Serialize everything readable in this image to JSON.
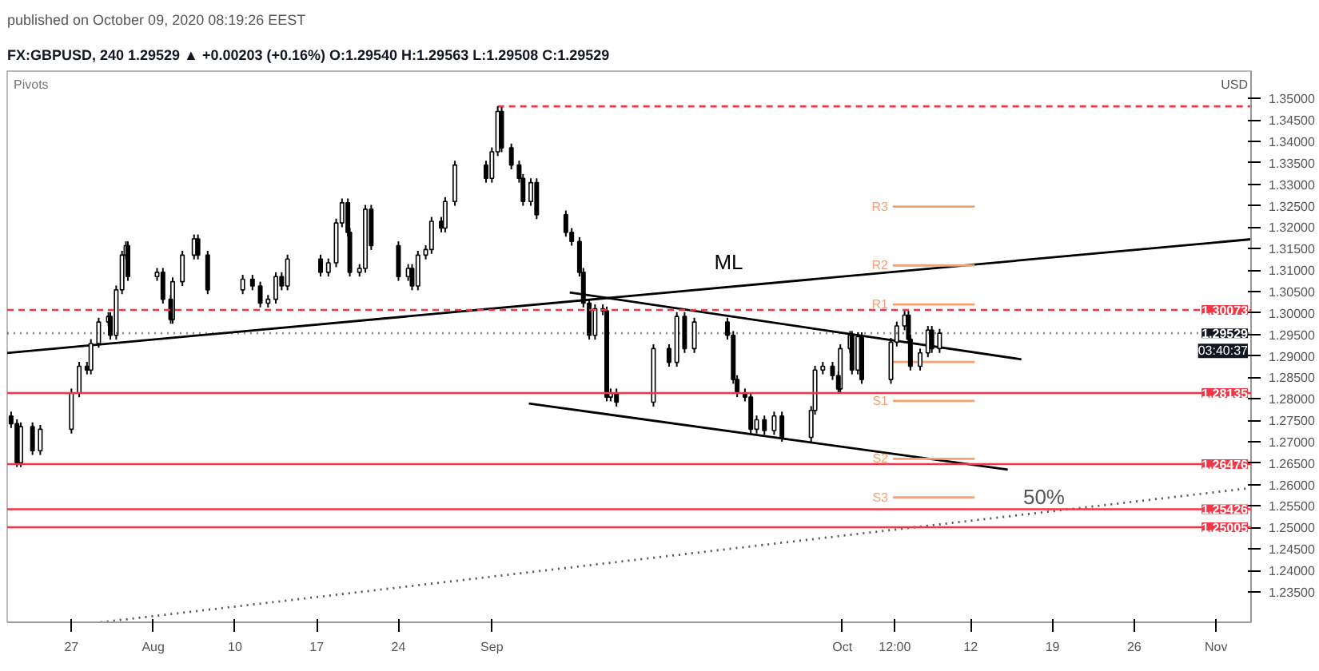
{
  "chart_data": {
    "type": "candlestick",
    "title": "FX:GBPUSD, 240 1.29529 ▲ +0.00203 (+0.16%) O:1.29540 H:1.29563 L:1.29508 C:1.29529",
    "subtitle": "published on October 09, 2020 08:19:26 EEST",
    "annotations": [
      "Pivots",
      "03:40:37",
      "USD"
    ],
    "x": [
      "2020-07-21T20:00",
      "2020-07-22T08:00",
      "2020-07-22T16:00",
      "2020-07-23T16:00",
      "2020-07-24T08:00",
      "2020-07-27T00:00",
      "2020-07-27T16:00",
      "2020-07-28T08:00",
      "2020-07-28T16:00",
      "2020-07-29T08:00",
      "2020-07-30T04:00",
      "2020-07-30T08:00",
      "2020-07-30T20:00",
      "2020-07-31T08:00",
      "2020-07-31T16:00",
      "2020-07-31T20:00",
      "2020-08-03T08:00",
      "2020-08-03T20:00",
      "2020-08-04T12:00",
      "2020-08-04T16:00",
      "2020-08-05T12:00",
      "2020-08-06T12:00",
      "2020-08-06T20:00",
      "2020-08-07T16:00",
      "2020-08-10T16:00",
      "2020-08-11T12:00",
      "2020-08-12T04:00",
      "2020-08-12T20:00",
      "2020-08-13T12:00",
      "2020-08-14T00:00",
      "2020-08-14T12:00",
      "2020-08-17T08:00",
      "2020-08-18T00:00",
      "2020-08-18T16:00",
      "2020-08-19T04:00",
      "2020-08-19T16:00",
      "2020-08-19T20:00",
      "2020-08-20T16:00",
      "2020-08-21T04:00",
      "2020-08-21T16:00",
      "2020-08-24T00:00",
      "2020-08-24T20:00",
      "2020-08-25T04:00",
      "2020-08-25T16:00",
      "2020-08-26T08:00",
      "2020-08-26T20:00",
      "2020-08-27T16:00",
      "2020-08-28T00:00",
      "2020-08-28T20:00",
      "2020-08-31T12:00",
      "2020-09-01T00:00",
      "2020-09-01T12:00",
      "2020-09-01T20:00",
      "2020-09-02T16:00",
      "2020-09-03T08:00",
      "2020-09-03T16:00",
      "2020-09-04T08:00",
      "2020-09-04T20:00",
      "2020-09-07T08:00",
      "2020-09-07T20:00",
      "2020-09-08T12:00",
      "2020-09-08T20:00",
      "2020-09-09T08:00",
      "2020-09-09T20:00",
      "2020-09-10T12:00",
      "2020-09-10T20:00",
      "2020-09-11T04:00",
      "2020-09-11T16:00",
      "2020-09-14T20:00",
      "2020-09-16T04:00",
      "2020-09-16T20:00",
      "2020-09-17T12:00",
      "2020-09-18T08:00",
      "2020-09-21T04:00",
      "2020-09-21T16:00",
      "2020-09-22T00:00",
      "2020-09-22T16:00",
      "2020-09-23T04:00",
      "2020-09-23T16:00",
      "2020-09-24T08:00",
      "2020-09-25T04:00",
      "2020-09-25T20:00",
      "2020-09-28T08:00",
      "2020-09-28T16:00",
      "2020-09-29T08:00",
      "2020-09-30T04:00",
      "2020-09-30T16:00",
      "2020-09-30T20:00",
      "2020-10-01T16:00",
      "2020-10-01T20:00",
      "2020-10-02T08:00",
      "2020-10-02T16:00",
      "2020-10-05T04:00",
      "2020-10-05T16:00",
      "2020-10-06T08:00",
      "2020-10-06T16:00",
      "2020-10-06T20:00",
      "2020-10-07T16:00",
      "2020-10-08T08:00",
      "2020-10-08T16:00",
      "2020-10-09T08:00"
    ],
    "ohlc": [
      [
        1.276,
        1.277,
        1.2732,
        1.2742
      ],
      [
        1.2742,
        1.2752,
        1.2641,
        1.2651
      ],
      [
        1.2651,
        1.2745,
        1.2641,
        1.2735
      ],
      [
        1.2735,
        1.2745,
        1.2669,
        1.2679
      ],
      [
        1.2679,
        1.2739,
        1.2669,
        1.2729
      ],
      [
        1.2729,
        1.2824,
        1.2719,
        1.2814
      ],
      [
        1.2814,
        1.2886,
        1.2804,
        1.2876
      ],
      [
        1.2876,
        1.2886,
        1.2857,
        1.2867
      ],
      [
        1.2867,
        1.2939,
        1.2857,
        1.2929
      ],
      [
        1.2929,
        1.2989,
        1.2919,
        1.2979
      ],
      [
        1.2979,
        1.3002,
        1.2969,
        1.2992
      ],
      [
        1.2992,
        1.3002,
        1.2938,
        1.2948
      ],
      [
        1.2948,
        1.3064,
        1.2938,
        1.3054
      ],
      [
        1.3054,
        1.3145,
        1.3044,
        1.3135
      ],
      [
        1.3135,
        1.3167,
        1.3125,
        1.3157
      ],
      [
        1.3157,
        1.3167,
        1.3075,
        1.3085
      ],
      [
        1.3085,
        1.3105,
        1.3075,
        1.3095
      ],
      [
        1.3095,
        1.3105,
        1.3022,
        1.3032
      ],
      [
        1.3032,
        1.3042,
        1.2975,
        1.2985
      ],
      [
        1.2985,
        1.3083,
        1.2975,
        1.3073
      ],
      [
        1.3073,
        1.3145,
        1.3063,
        1.3135
      ],
      [
        1.3135,
        1.3183,
        1.3125,
        1.3173
      ],
      [
        1.3173,
        1.3183,
        1.3125,
        1.3135
      ],
      [
        1.3135,
        1.3145,
        1.3044,
        1.3054
      ],
      [
        1.3054,
        1.3089,
        1.3044,
        1.3079
      ],
      [
        1.3079,
        1.3089,
        1.3053,
        1.3063
      ],
      [
        1.3063,
        1.3073,
        1.3013,
        1.3023
      ],
      [
        1.3023,
        1.3042,
        1.3013,
        1.3032
      ],
      [
        1.3032,
        1.3095,
        1.3022,
        1.3085
      ],
      [
        1.3085,
        1.3095,
        1.3053,
        1.3063
      ],
      [
        1.3063,
        1.3136,
        1.3053,
        1.3126
      ],
      [
        1.3126,
        1.3136,
        1.3085,
        1.3095
      ],
      [
        1.3095,
        1.3127,
        1.3085,
        1.3117
      ],
      [
        1.3117,
        1.322,
        1.3107,
        1.321
      ],
      [
        1.321,
        1.3267,
        1.32,
        1.3257
      ],
      [
        1.3257,
        1.3267,
        1.3178,
        1.3188
      ],
      [
        1.3188,
        1.3198,
        1.3085,
        1.3095
      ],
      [
        1.3095,
        1.3114,
        1.3085,
        1.3104
      ],
      [
        1.3104,
        1.3252,
        1.3094,
        1.3242
      ],
      [
        1.3242,
        1.3252,
        1.3147,
        1.3157
      ],
      [
        1.3157,
        1.3167,
        1.3075,
        1.3085
      ],
      [
        1.3085,
        1.3114,
        1.3075,
        1.3104
      ],
      [
        1.3104,
        1.3114,
        1.3053,
        1.3063
      ],
      [
        1.3063,
        1.3145,
        1.3053,
        1.3135
      ],
      [
        1.3135,
        1.3158,
        1.3125,
        1.3148
      ],
      [
        1.3148,
        1.3224,
        1.3138,
        1.3214
      ],
      [
        1.3214,
        1.3224,
        1.3188,
        1.3198
      ],
      [
        1.3198,
        1.327,
        1.3188,
        1.326
      ],
      [
        1.326,
        1.3355,
        1.325,
        1.3345
      ],
      [
        1.3345,
        1.3355,
        1.3304,
        1.3314
      ],
      [
        1.3314,
        1.3386,
        1.3304,
        1.3376
      ],
      [
        1.3376,
        1.3482,
        1.3366,
        1.347
      ],
      [
        1.347,
        1.348,
        1.3375,
        1.3385
      ],
      [
        1.3385,
        1.3395,
        1.3335,
        1.3345
      ],
      [
        1.3345,
        1.3355,
        1.3304,
        1.3314
      ],
      [
        1.3314,
        1.3324,
        1.325,
        1.326
      ],
      [
        1.326,
        1.3314,
        1.325,
        1.3304
      ],
      [
        1.3304,
        1.3314,
        1.3219,
        1.3229
      ],
      [
        1.3229,
        1.3239,
        1.3178,
        1.3188
      ],
      [
        1.3188,
        1.3198,
        1.3157,
        1.3167
      ],
      [
        1.3167,
        1.3177,
        1.3085,
        1.3095
      ],
      [
        1.3095,
        1.3105,
        1.3013,
        1.3023
      ],
      [
        1.3023,
        1.3033,
        1.2938,
        1.2948
      ],
      [
        1.2948,
        1.302,
        1.2938,
        1.301
      ],
      [
        1.301,
        1.302,
        1.2995,
        1.3005
      ],
      [
        1.3005,
        1.3015,
        1.2794,
        1.2804
      ],
      [
        1.2804,
        1.2824,
        1.2794,
        1.2814
      ],
      [
        1.2814,
        1.2824,
        1.2782,
        1.2792
      ],
      [
        1.2792,
        1.2927,
        1.2782,
        1.2917
      ],
      [
        1.2917,
        1.2927,
        1.2875,
        1.2885
      ],
      [
        1.2885,
        1.3002,
        1.2875,
        1.2992
      ],
      [
        1.2992,
        1.3002,
        1.2907,
        1.2917
      ],
      [
        1.2917,
        1.2989,
        1.2907,
        1.2979
      ],
      [
        1.2979,
        1.2989,
        1.2938,
        1.2948
      ],
      [
        1.2948,
        1.2958,
        1.2835,
        1.2845
      ],
      [
        1.2845,
        1.2855,
        1.2804,
        1.2814
      ],
      [
        1.2814,
        1.2824,
        1.2794,
        1.2804
      ],
      [
        1.2804,
        1.2814,
        1.2719,
        1.2729
      ],
      [
        1.2729,
        1.2761,
        1.2719,
        1.2751
      ],
      [
        1.2751,
        1.2761,
        1.2716,
        1.2726
      ],
      [
        1.2726,
        1.277,
        1.2716,
        1.276
      ],
      [
        1.276,
        1.277,
        1.27,
        1.271
      ],
      [
        1.271,
        1.2783,
        1.27,
        1.2773
      ],
      [
        1.2773,
        1.2877,
        1.2763,
        1.2867
      ],
      [
        1.2867,
        1.2886,
        1.2857,
        1.2876
      ],
      [
        1.2876,
        1.2886,
        1.2844,
        1.2854
      ],
      [
        1.2854,
        1.2864,
        1.2813,
        1.2823
      ],
      [
        1.2823,
        1.2927,
        1.2813,
        1.2917
      ],
      [
        1.2917,
        1.2958,
        1.2907,
        1.2948
      ],
      [
        1.2948,
        1.2958,
        1.2857,
        1.2867
      ],
      [
        1.2867,
        1.2955,
        1.2857,
        1.2945
      ],
      [
        1.2945,
        1.2955,
        1.2835,
        1.2845
      ],
      [
        1.2845,
        1.2942,
        1.2835,
        1.2932
      ],
      [
        1.2932,
        1.298,
        1.2922,
        1.297
      ],
      [
        1.297,
        1.3005,
        1.296,
        1.2995
      ],
      [
        1.2995,
        1.3005,
        1.2929,
        1.2939
      ],
      [
        1.2939,
        1.2949,
        1.2866,
        1.2876
      ],
      [
        1.2876,
        1.2917,
        1.2866,
        1.2907
      ],
      [
        1.2907,
        1.297,
        1.2897,
        1.296
      ],
      [
        1.296,
        1.297,
        1.2907,
        1.2917
      ],
      [
        1.2917,
        1.2963,
        1.2907,
        1.2953
      ]
    ],
    "series": [
      {
        "type": "line",
        "name": "ML",
        "color": "#000000",
        "x": [
          "2020-07-21T12:00",
          "2020-11-05T00:00"
        ],
        "values": [
          1.2907,
          1.3172
        ]
      },
      {
        "type": "line",
        "color": "#000000",
        "x": [
          "2020-09-07T16:00",
          "2020-10-16T08:00"
        ],
        "values": [
          1.3048,
          1.2892
        ]
      },
      {
        "type": "line",
        "color": "#000000",
        "x": [
          "2020-09-04T04:00",
          "2020-10-15T04:00"
        ],
        "values": [
          1.2789,
          1.2635
        ]
      },
      {
        "type": "line",
        "name": "50%",
        "color": "#555555",
        "line_style": "dotted",
        "x": [
          "2020-07-29T12:00",
          "2020-11-05T00:00"
        ],
        "values": [
          1.2279,
          1.2592
        ]
      },
      {
        "type": "line",
        "color": "#f23645",
        "line_style": "dashed",
        "x": [
          "2020-09-01T12:00",
          "2020-11-05T00:00"
        ],
        "values": [
          1.3482,
          1.3482
        ]
      },
      {
        "type": "line",
        "name": "R3",
        "color": "#f7a072",
        "x": [
          "2020-10-05T08:00",
          "2020-10-12T08:00"
        ],
        "values": [
          1.3248,
          1.3248
        ]
      },
      {
        "type": "line",
        "name": "R2",
        "color": "#f7a072",
        "x": [
          "2020-10-05T08:00",
          "2020-10-12T08:00"
        ],
        "values": [
          1.3111,
          1.3111
        ]
      },
      {
        "type": "line",
        "name": "R1",
        "color": "#f7a072",
        "x": [
          "2020-10-05T08:00",
          "2020-10-12T08:00"
        ],
        "values": [
          1.302,
          1.302
        ]
      },
      {
        "type": "line",
        "color": "#f7a072",
        "x": [
          "2020-10-05T08:00",
          "2020-10-12T08:00"
        ],
        "values": [
          1.2886,
          1.2886
        ]
      },
      {
        "type": "line",
        "name": "S1",
        "color": "#f7a072",
        "x": [
          "2020-10-05T08:00",
          "2020-10-12T08:00"
        ],
        "values": [
          1.2795,
          1.2795
        ]
      },
      {
        "type": "line",
        "name": "S2",
        "color": "#f7a072",
        "x": [
          "2020-10-05T08:00",
          "2020-10-12T08:00"
        ],
        "values": [
          1.266,
          1.266
        ]
      },
      {
        "type": "line",
        "name": "S3",
        "color": "#f7a072",
        "x": [
          "2020-10-05T08:00",
          "2020-10-12T08:00"
        ],
        "values": [
          1.257,
          1.257
        ]
      }
    ],
    "ref_lines": [
      {
        "axis": "y",
        "value": 1.30073,
        "label": "1.30073",
        "color": "#f23645",
        "line_style": "dashed"
      },
      {
        "axis": "y",
        "value": 1.29529,
        "label": "1.29529",
        "color": "#131722",
        "line_style": "dotted"
      },
      {
        "axis": "y",
        "value": 1.28135,
        "label": "1.28135",
        "color": "#f23645"
      },
      {
        "axis": "y",
        "value": 1.26476,
        "label": "1.26476",
        "color": "#f23645"
      },
      {
        "axis": "y",
        "value": 1.25426,
        "label": "1.25426",
        "color": "#f23645"
      },
      {
        "axis": "y",
        "value": 1.25005,
        "label": "1.25005",
        "color": "#f23645"
      }
    ],
    "xlim": [
      "2020-07-21T12:00",
      "2020-11-05T00:00"
    ],
    "ylim": [
      1.2279,
      1.3564
    ],
    "xticks": [
      {
        "value": "2020-07-27",
        "label": "27"
      },
      {
        "value": "2020-08-03",
        "label": "Aug"
      },
      {
        "value": "2020-08-10",
        "label": "10"
      },
      {
        "value": "2020-08-17",
        "label": "17"
      },
      {
        "value": "2020-08-24",
        "label": "24"
      },
      {
        "value": "2020-09-01",
        "label": "Sep"
      },
      {
        "value": "2020-10-01",
        "label": "Oct"
      },
      {
        "value": "2020-10-05T12:00",
        "label": "12:00"
      },
      {
        "value": "2020-10-12",
        "label": "12"
      },
      {
        "value": "2020-10-19",
        "label": "19"
      },
      {
        "value": "2020-10-26",
        "label": "26"
      },
      {
        "value": "2020-11-02",
        "label": "Nov"
      }
    ],
    "yticks": [
      {
        "value": 1.235,
        "label": "1.23500"
      },
      {
        "value": 1.24,
        "label": "1.24000"
      },
      {
        "value": 1.245,
        "label": "1.24500"
      },
      {
        "value": 1.25,
        "label": "1.25000"
      },
      {
        "value": 1.255,
        "label": "1.25500"
      },
      {
        "value": 1.26,
        "label": "1.26000"
      },
      {
        "value": 1.265,
        "label": "1.26500"
      },
      {
        "value": 1.27,
        "label": "1.27000"
      },
      {
        "value": 1.275,
        "label": "1.27500"
      },
      {
        "value": 1.28,
        "label": "1.28000"
      },
      {
        "value": 1.285,
        "label": "1.28500"
      },
      {
        "value": 1.29,
        "label": "1.29000"
      },
      {
        "value": 1.295,
        "label": "1.29500"
      },
      {
        "value": 1.3,
        "label": "1.30000"
      },
      {
        "value": 1.305,
        "label": "1.30500"
      },
      {
        "value": 1.31,
        "label": "1.31000"
      },
      {
        "value": 1.315,
        "label": "1.31500"
      },
      {
        "value": 1.32,
        "label": "1.32000"
      },
      {
        "value": 1.325,
        "label": "1.32500"
      },
      {
        "value": 1.33,
        "label": "1.33000"
      },
      {
        "value": 1.335,
        "label": "1.33500"
      },
      {
        "value": 1.34,
        "label": "1.34000"
      },
      {
        "value": 1.345,
        "label": "1.34500"
      },
      {
        "value": 1.35,
        "label": "1.35000"
      }
    ],
    "grid": false
  }
}
